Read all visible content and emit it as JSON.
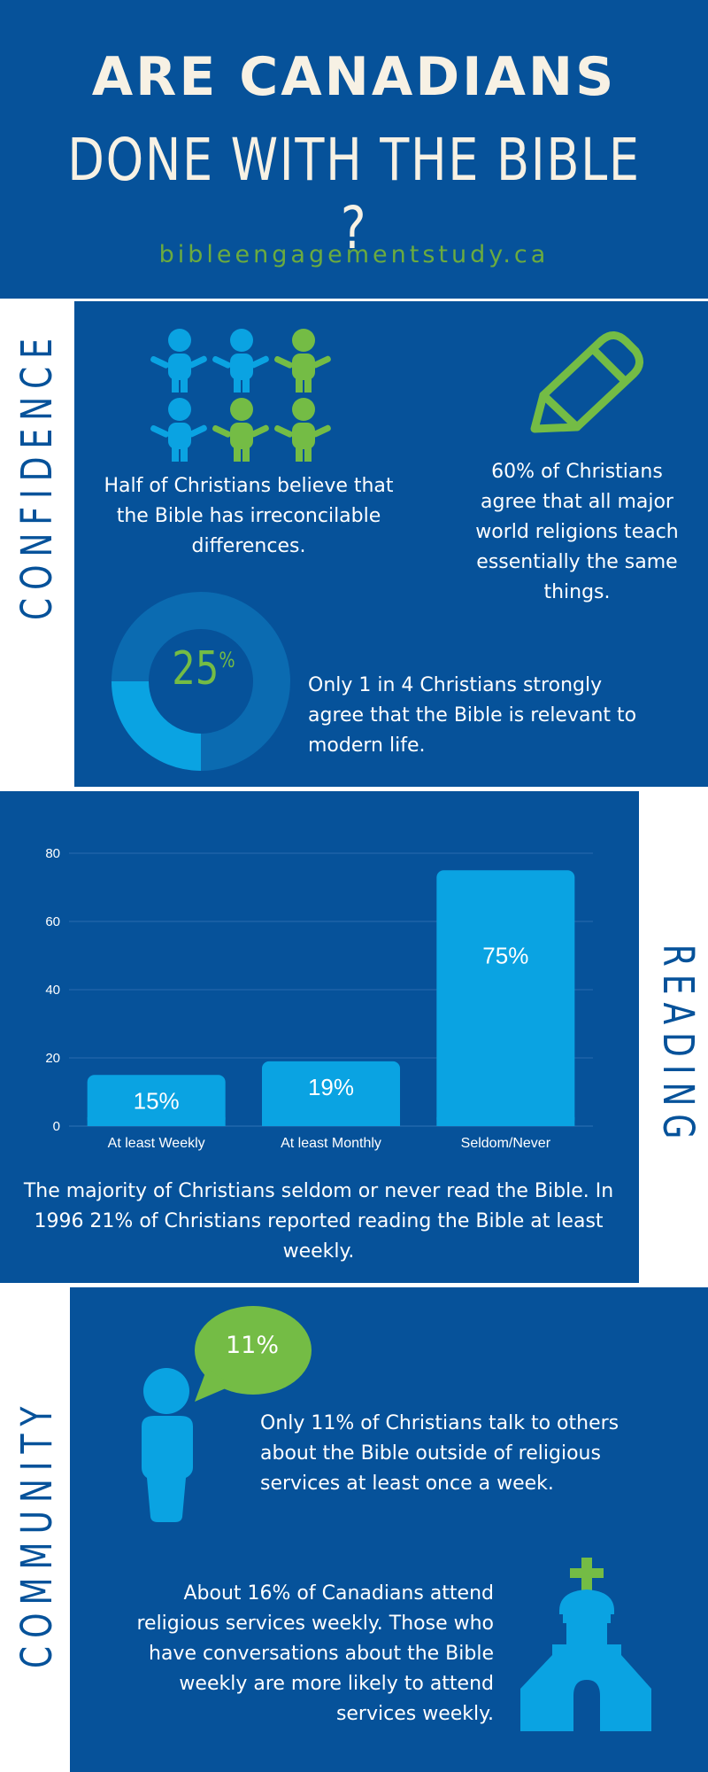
{
  "header": {
    "title_line1": "ARE CANADIANS",
    "title_line2": "DONE WITH THE BIBLE ?",
    "site": "bibleengagementstudy.ca"
  },
  "confidence": {
    "label": "CONFIDENCE",
    "stat1": "Half of Christians believe that the Bible has irreconcilable differences.",
    "stat2": "60% of Christians agree that all major world religions teach essentially the same things.",
    "donut_value": "25",
    "donut_unit": "%",
    "donut_fraction": 0.25,
    "stat3": "Only 1 in 4 Christians strongly agree that the Bible is relevant to modern life."
  },
  "reading": {
    "label": "READING",
    "caption": "The majority of Christians seldom or never read the Bible. In 1996 21% of Christians reported reading the Bible at least weekly."
  },
  "chart_data": {
    "type": "bar",
    "categories": [
      "At least Weekly",
      "At least Monthly",
      "Seldom/Never"
    ],
    "values": [
      15,
      19,
      75
    ],
    "data_labels": [
      "15%",
      "19%",
      "75%"
    ],
    "ylim": [
      0,
      80
    ],
    "yticks": [
      0,
      20,
      40,
      60,
      80
    ],
    "grid": true,
    "title": "",
    "xlabel": "",
    "ylabel": ""
  },
  "community": {
    "label": "COMMUNITY",
    "bubble": "11%",
    "stat1": "Only 11% of Christians talk to others about the Bible outside of religious services at least once a week.",
    "stat2": "About 16% of Canadians attend religious services weekly. Those who have conversations about the Bible weekly are more likely to attend services weekly."
  },
  "colors": {
    "navy": "#06529a",
    "light_blue": "#0aa3e2",
    "mid_blue": "#0b6bb1",
    "green": "#74bc45",
    "cream": "#f7f1e4"
  }
}
